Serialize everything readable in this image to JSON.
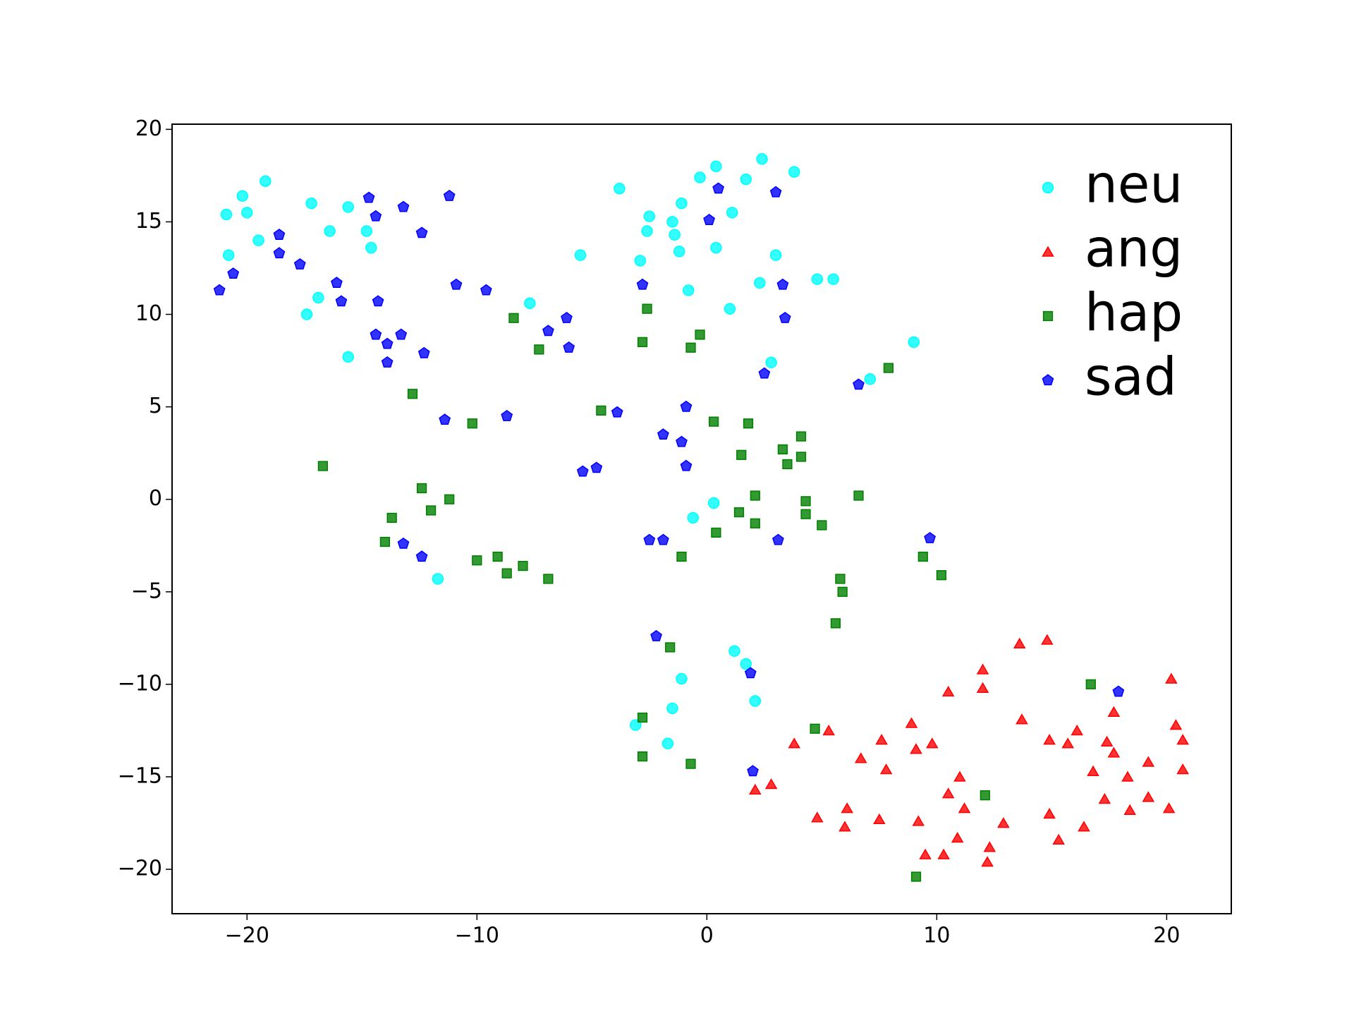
{
  "chart_data": {
    "type": "scatter",
    "xlim": [
      -23.26,
      22.81
    ],
    "ylim": [
      -22.4,
      20.28
    ],
    "xticks": [
      {
        "value": -20,
        "label": "−20"
      },
      {
        "value": -10,
        "label": "−10"
      },
      0,
      10,
      20
    ],
    "yticks": [
      {
        "value": -20,
        "label": "−20"
      },
      {
        "value": -15,
        "label": "−15"
      },
      {
        "value": -10,
        "label": "−10"
      },
      {
        "value": -5,
        "label": "−5"
      },
      0,
      5,
      10,
      15,
      20
    ],
    "legend": "upper right",
    "series": [
      {
        "name": "neu",
        "color": "#00ffff",
        "marker": "circle",
        "x": [
          -19.2,
          -20.2,
          -20.9,
          -20.0,
          -20.8,
          -19.5,
          -17.2,
          -16.4,
          -15.6,
          -14.8,
          -14.6,
          -16.9,
          -17.4,
          -15.6,
          -7.7,
          -5.5,
          -3.8,
          -2.5,
          -2.6,
          -2.9,
          -1.5,
          -1.4,
          -1.2,
          -1.1,
          -0.3,
          0.4,
          1.1,
          1.7,
          2.4,
          3.8,
          0.4,
          -0.8,
          1.0,
          2.3,
          3.0,
          4.8,
          5.5,
          2.8,
          7.1,
          9.0,
          0.3,
          -0.6,
          -11.7,
          1.2,
          1.7,
          -1.1,
          2.1,
          -1.5,
          -3.1,
          -1.7
        ],
        "y": [
          17.2,
          16.4,
          15.4,
          15.5,
          13.2,
          14.0,
          16.0,
          14.5,
          15.8,
          14.5,
          13.6,
          10.9,
          10.0,
          7.7,
          10.6,
          13.2,
          16.8,
          15.3,
          14.5,
          12.9,
          15.0,
          14.3,
          13.4,
          16.0,
          17.4,
          18.0,
          15.5,
          17.3,
          18.4,
          17.7,
          13.6,
          11.3,
          10.3,
          11.7,
          13.2,
          11.9,
          11.9,
          7.4,
          6.5,
          8.5,
          -0.2,
          -1.0,
          -4.3,
          -8.2,
          -8.9,
          -9.7,
          -10.9,
          -11.3,
          -12.2,
          -13.2
        ]
      },
      {
        "name": "ang",
        "color": "#ff0000",
        "marker": "triangle",
        "x": [
          14.8,
          13.6,
          12.0,
          12.0,
          10.5,
          20.2,
          13.7,
          17.7,
          20.4,
          8.9,
          5.3,
          3.8,
          7.6,
          9.8,
          9.1,
          14.9,
          15.7,
          16.1,
          17.4,
          17.7,
          20.7,
          6.7,
          7.8,
          11.0,
          16.8,
          18.3,
          19.2,
          20.7,
          2.1,
          2.8,
          10.5,
          17.3,
          19.2,
          11.2,
          18.4,
          20.1,
          6.1,
          4.8,
          7.5,
          6.0,
          9.2,
          12.9,
          14.9,
          16.4,
          10.9,
          15.3,
          9.5,
          10.3,
          12.3,
          12.2
        ],
        "y": [
          -7.6,
          -7.8,
          -9.2,
          -10.2,
          -10.4,
          -9.7,
          -11.9,
          -11.5,
          -12.2,
          -12.1,
          -12.5,
          -13.2,
          -13.0,
          -13.2,
          -13.5,
          -13.0,
          -13.2,
          -12.5,
          -13.1,
          -13.7,
          -13.0,
          -14.0,
          -14.6,
          -15.0,
          -14.7,
          -15.0,
          -14.2,
          -14.6,
          -15.7,
          -15.4,
          -15.9,
          -16.2,
          -16.1,
          -16.7,
          -16.8,
          -16.7,
          -16.7,
          -17.2,
          -17.3,
          -17.7,
          -17.4,
          -17.5,
          -17.0,
          -17.7,
          -18.3,
          -18.4,
          -19.2,
          -19.2,
          -18.8,
          -19.6
        ]
      },
      {
        "name": "hap",
        "color": "#008000",
        "marker": "square",
        "x": [
          -2.6,
          -8.4,
          -2.8,
          -7.3,
          -0.3,
          -0.7,
          7.9,
          -12.8,
          -10.2,
          -4.6,
          0.3,
          1.8,
          4.1,
          3.3,
          4.1,
          1.5,
          3.5,
          -16.7,
          -12.4,
          -11.2,
          -12.0,
          -13.7,
          -14.0,
          2.1,
          4.3,
          4.3,
          1.4,
          2.1,
          5.0,
          6.6,
          0.4,
          -1.1,
          -10.0,
          -9.1,
          -8.7,
          -8.0,
          -6.9,
          9.4,
          10.2,
          5.8,
          5.9,
          5.6,
          -1.6,
          -2.8,
          4.7,
          -2.8,
          -0.7,
          16.7,
          12.1,
          9.1
        ],
        "y": [
          10.3,
          9.8,
          8.5,
          8.1,
          8.9,
          8.2,
          7.1,
          5.7,
          4.1,
          4.8,
          4.2,
          4.1,
          3.4,
          2.7,
          2.3,
          2.4,
          1.9,
          1.8,
          0.6,
          0.0,
          -0.6,
          -1.0,
          -2.3,
          0.2,
          -0.1,
          -0.8,
          -0.7,
          -1.3,
          -1.4,
          0.2,
          -1.8,
          -3.1,
          -3.3,
          -3.1,
          -4.0,
          -3.6,
          -4.3,
          -3.1,
          -4.1,
          -4.3,
          -5.0,
          -6.7,
          -8.0,
          -11.8,
          -12.4,
          -13.9,
          -14.3,
          -10.0,
          -16.0,
          -20.4
        ]
      },
      {
        "name": "sad",
        "color": "#0000ff",
        "marker": "pentagon",
        "x": [
          -21.2,
          -20.6,
          -18.6,
          -18.6,
          -17.7,
          -16.1,
          -15.9,
          -14.7,
          -14.4,
          -13.2,
          -12.4,
          -11.2,
          -14.3,
          -14.4,
          -13.9,
          -13.3,
          -13.9,
          -12.3,
          -10.9,
          -9.6,
          -6.9,
          -6.1,
          -6.0,
          -11.4,
          -8.7,
          -3.9,
          -5.4,
          -4.8,
          -0.9,
          -1.9,
          -1.1,
          -0.9,
          -2.8,
          0.1,
          0.5,
          3.0,
          3.3,
          3.4,
          2.5,
          6.6,
          -13.2,
          -12.4,
          -2.5,
          -1.9,
          3.1,
          9.7,
          -2.2,
          1.9,
          2.0,
          17.9
        ],
        "y": [
          11.3,
          12.2,
          14.3,
          13.3,
          12.7,
          11.7,
          10.7,
          16.3,
          15.3,
          15.8,
          14.4,
          16.4,
          10.7,
          8.9,
          8.4,
          8.9,
          7.4,
          7.9,
          11.6,
          11.3,
          9.1,
          9.8,
          8.2,
          4.3,
          4.5,
          4.7,
          1.5,
          1.7,
          5.0,
          3.5,
          3.1,
          1.8,
          11.6,
          15.1,
          16.8,
          16.6,
          11.6,
          9.8,
          6.8,
          6.2,
          -2.4,
          -3.1,
          -2.2,
          -2.2,
          -2.2,
          -2.1,
          -7.4,
          -9.4,
          -14.7,
          -10.4
        ]
      }
    ]
  }
}
